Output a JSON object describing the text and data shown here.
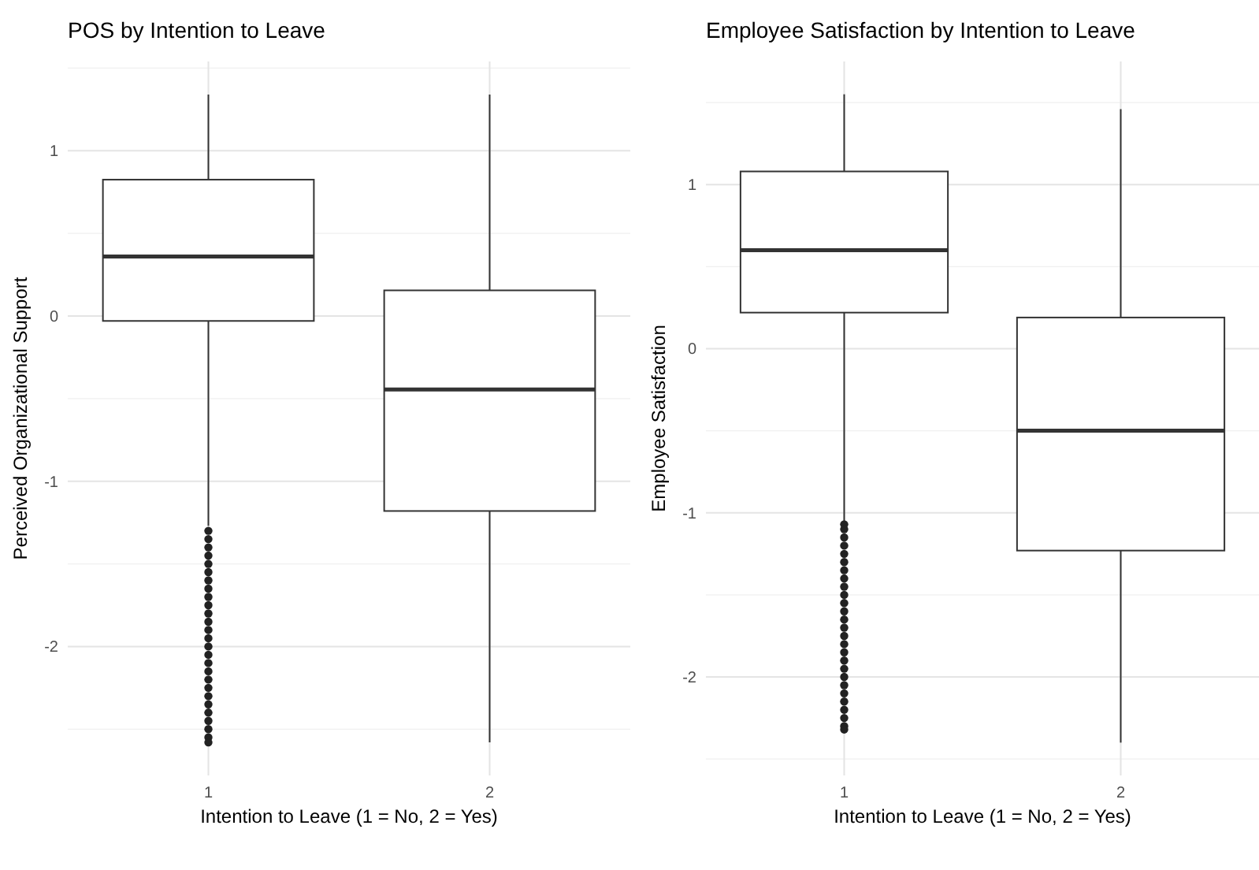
{
  "chart_data": [
    {
      "type": "box",
      "title": "POS by Intention to Leave",
      "xlabel": "Intention to Leave (1 = No, 2 = Yes)",
      "ylabel": "Perceived Organizational Support",
      "categories": [
        "1",
        "2"
      ],
      "grid": true,
      "ylim": [
        -2.78,
        1.54
      ],
      "yticks": [
        {
          "value": -2.5,
          "label": null
        },
        -2,
        {
          "value": -1.5,
          "label": null
        },
        -1,
        {
          "value": -0.5,
          "label": null
        },
        0,
        {
          "value": 0.5,
          "label": null
        },
        1,
        {
          "value": 1.5,
          "label": null
        }
      ],
      "boxes": [
        {
          "low": -1.27,
          "q1": -0.03,
          "median": 0.36,
          "q3": 0.825,
          "high": 1.34,
          "outliers": [
            -1.3,
            -1.35,
            -1.4,
            -1.45,
            -1.5,
            -1.55,
            -1.6,
            -1.65,
            -1.7,
            -1.75,
            -1.8,
            -1.85,
            -1.9,
            -1.95,
            -2.0,
            -2.05,
            -2.1,
            -2.15,
            -2.2,
            -2.25,
            -2.3,
            -2.35,
            -2.4,
            -2.45,
            -2.5,
            -2.55,
            -2.58
          ]
        },
        {
          "low": -2.58,
          "q1": -1.18,
          "median": -0.445,
          "q3": 0.155,
          "high": 1.34
        }
      ]
    },
    {
      "type": "box",
      "title": "Employee Satisfaction by Intention to Leave",
      "xlabel": "Intention to Leave (1 = No, 2 = Yes)",
      "ylabel": "Employee Satisfaction",
      "categories": [
        "1",
        "2"
      ],
      "grid": true,
      "ylim": [
        -2.6,
        1.75
      ],
      "yticks": [
        {
          "value": -2.5,
          "label": null
        },
        -2,
        {
          "value": -1.5,
          "label": null
        },
        -1,
        {
          "value": -0.5,
          "label": null
        },
        0,
        {
          "value": 0.5,
          "label": null
        },
        1,
        {
          "value": 1.5,
          "label": null
        }
      ],
      "boxes": [
        {
          "low": -1.05,
          "q1": 0.22,
          "median": 0.6,
          "q3": 1.08,
          "high": 1.55,
          "outliers": [
            -1.07,
            -1.1,
            -1.15,
            -1.2,
            -1.25,
            -1.3,
            -1.35,
            -1.4,
            -1.45,
            -1.5,
            -1.55,
            -1.6,
            -1.65,
            -1.7,
            -1.75,
            -1.8,
            -1.85,
            -1.9,
            -1.95,
            -2.0,
            -2.05,
            -2.1,
            -2.15,
            -2.2,
            -2.25,
            -2.3,
            -2.32
          ]
        },
        {
          "low": -2.4,
          "q1": -1.23,
          "median": -0.5,
          "q3": 0.19,
          "high": 1.46
        }
      ]
    }
  ]
}
